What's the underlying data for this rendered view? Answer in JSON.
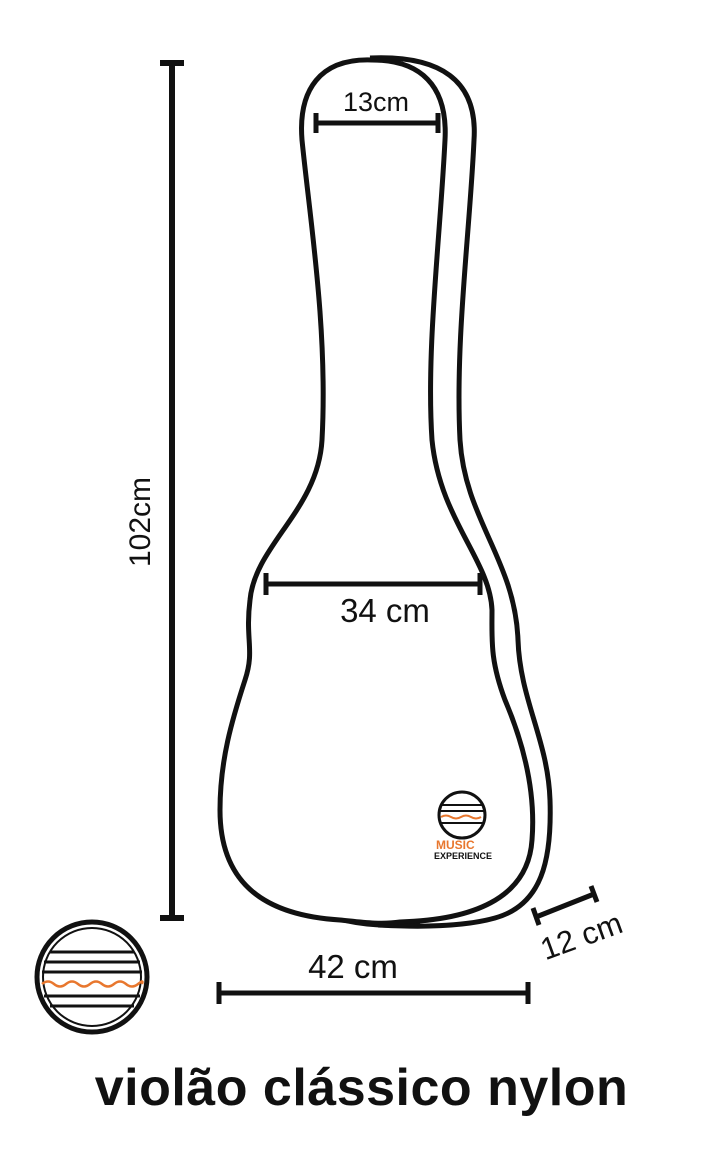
{
  "title": "violão clássico nylon",
  "dimensions": {
    "height": "102cm",
    "neck_width": "13cm",
    "upper_body_width": "34 cm",
    "lower_body_width": "42 cm",
    "depth": "12 cm"
  },
  "brand": {
    "name_line1": "MUSIC",
    "name_line2": "EXPERIENCE",
    "accent_color": "#e8772e",
    "ink_color": "#111111"
  }
}
